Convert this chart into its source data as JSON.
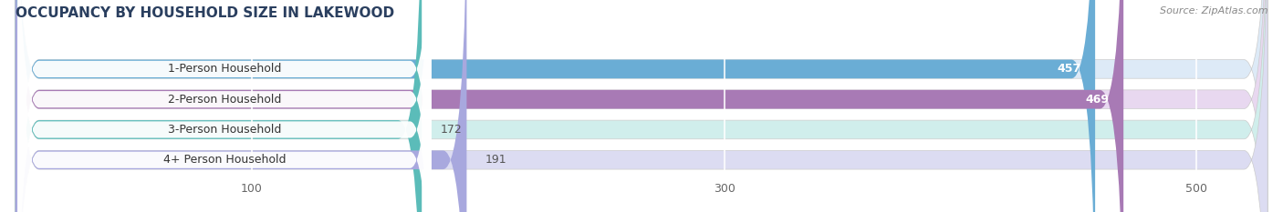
{
  "title": "OCCUPANCY BY HOUSEHOLD SIZE IN LAKEWOOD",
  "source": "Source: ZipAtlas.com",
  "categories": [
    "1-Person Household",
    "2-Person Household",
    "3-Person Household",
    "4+ Person Household"
  ],
  "values": [
    457,
    469,
    172,
    191
  ],
  "bar_colors": [
    "#6aadd5",
    "#a87ab5",
    "#5bbcb9",
    "#a8a8de"
  ],
  "bar_bg_colors": [
    "#ddeaf7",
    "#e8d8f0",
    "#d0eeec",
    "#dcdcf2"
  ],
  "xlim": [
    0,
    530
  ],
  "xticks": [
    100,
    300,
    500
  ],
  "bar_height": 0.62,
  "background_color": "#ffffff",
  "value_label_inside": [
    true,
    true,
    false,
    false
  ],
  "figsize": [
    14.06,
    2.33
  ],
  "dpi": 100,
  "title_color": "#2a3f5f",
  "source_color": "#888888"
}
